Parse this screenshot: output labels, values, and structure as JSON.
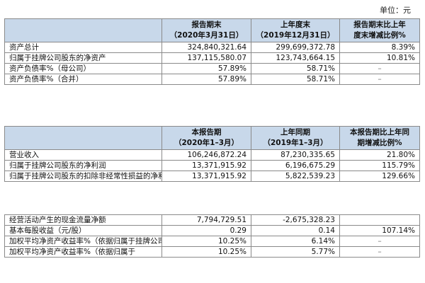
{
  "unit_label": "单位：元",
  "table1": {
    "headers": [
      "",
      "报告期末\n（2020年3月31日）",
      "上年度末\n（2019年12月31日）",
      "报告期末比上年\n度末增减比例%"
    ],
    "rows": [
      [
        "资产总计",
        "324,840,321.64",
        "299,699,372.78",
        "8.39%"
      ],
      [
        "归属于挂牌公司股东的净资产",
        "137,115,580.07",
        "123,743,664.15",
        "10.81%"
      ],
      [
        "资产负债率%（母公司）",
        "57.89%",
        "58.71%",
        "–"
      ],
      [
        "资产负债率%（合并）",
        "57.89%",
        "58.71%",
        "–"
      ]
    ]
  },
  "table2": {
    "headers": [
      "",
      "本报告期\n（2020年1–3月）",
      "上年同期\n（2019年1–3月）",
      "本报告期比上年同\n期增减比例%"
    ],
    "rows": [
      [
        "营业收入",
        "106,246,872.24",
        "87,230,335.65",
        "21.80%"
      ],
      [
        "归属于挂牌公司股东的净利润",
        "13,371,915.92",
        "6,196,675.29",
        "115.79%"
      ],
      [
        "归属于挂牌公司股东的扣除非经常性损益的净利润",
        "13,371,915.92",
        "5,822,539.23",
        "129.66%"
      ]
    ]
  },
  "table3": {
    "rows": [
      [
        "经营活动产生的现金流量净额",
        "7,794,729.51",
        "-2,675,328.23",
        ""
      ],
      [
        "基本每股收益（元/股）",
        "0.29",
        "0.14",
        "107.14%"
      ],
      [
        "加权平均净资产收益率%（依据归属于挂牌公司股东的净利润计算）",
        "10.25%",
        "6.14%",
        "–"
      ],
      [
        "加权平均净资产收益率%（依据归属于",
        "10.25%",
        "5.77%",
        "–"
      ]
    ]
  }
}
